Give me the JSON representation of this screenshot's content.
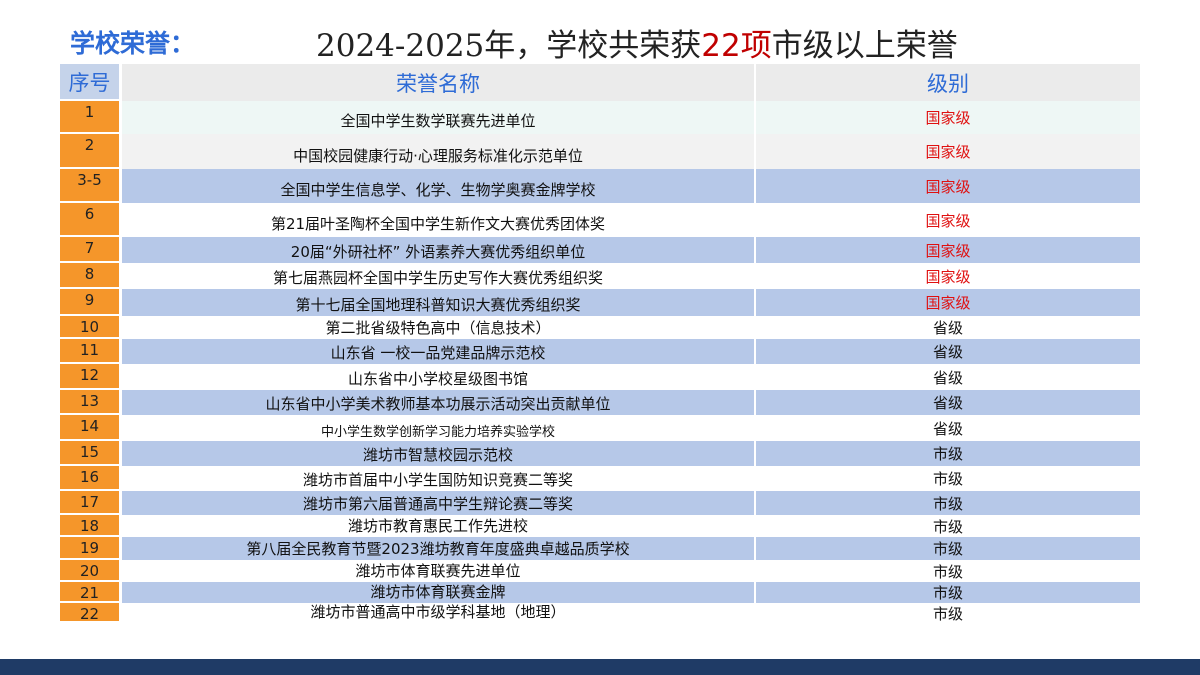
{
  "section_label": "学校荣誉：",
  "headline": {
    "prefix": "2024-2025年，学校共荣获",
    "count": "22",
    "unit": "项",
    "suffix": "市级以上荣誉"
  },
  "table": {
    "headers": {
      "index": "序号",
      "name": "荣誉名称",
      "level": "级别"
    },
    "rows": [
      {
        "index": "1",
        "name": "全国中学生数学联赛先进单位",
        "level": "国家级"
      },
      {
        "index": "2",
        "name": "中国校园健康行动·心理服务标准化示范单位",
        "level": "国家级"
      },
      {
        "index": "3-5",
        "name": "全国中学生信息学、化学、生物学奥赛金牌学校",
        "level": "国家级"
      },
      {
        "index": "6",
        "name": "第21届叶圣陶杯全国中学生新作文大赛优秀团体奖",
        "level": "国家级"
      },
      {
        "index": "7",
        "name": "20届“外研社杯” 外语素养大赛优秀组织单位",
        "level": "国家级"
      },
      {
        "index": "8",
        "name": "第七届燕园杯全国中学生历史写作大赛优秀组织奖",
        "level": "国家级"
      },
      {
        "index": "9",
        "name": "第十七届全国地理科普知识大赛优秀组织奖",
        "level": "国家级"
      },
      {
        "index": "10",
        "name": "第二批省级特色高中（信息技术）",
        "level": "省级"
      },
      {
        "index": "11",
        "name": "山东省 一校一品党建品牌示范校",
        "level": "省级"
      },
      {
        "index": "12",
        "name": "山东省中小学校星级图书馆",
        "level": "省级"
      },
      {
        "index": "13",
        "name": "山东省中小学美术教师基本功展示活动突出贡献单位",
        "level": "省级"
      },
      {
        "index": "14",
        "name": "中小学生数学创新学习能力培养实验学校",
        "level": "省级"
      },
      {
        "index": "15",
        "name": "潍坊市智慧校园示范校",
        "level": "市级"
      },
      {
        "index": "16",
        "name": "潍坊市首届中小学生国防知识竞赛二等奖",
        "level": "市级"
      },
      {
        "index": "17",
        "name": "潍坊市第六届普通高中学生辩论赛二等奖",
        "level": "市级"
      },
      {
        "index": "18",
        "name": "潍坊市教育惠民工作先进校",
        "level": "市级"
      },
      {
        "index": "19",
        "name": "第八届全民教育节暨2023潍坊教育年度盛典卓越品质学校",
        "level": "市级"
      },
      {
        "index": "20",
        "name": "潍坊市体育联赛先进单位",
        "level": "市级"
      },
      {
        "index": "21",
        "name": "潍坊市体育联赛金牌",
        "level": "市级"
      },
      {
        "index": "22",
        "name": "潍坊市普通高中市级学科基地（地理）",
        "level": "市级"
      }
    ]
  },
  "colors": {
    "accent_blue": "#2e6bd6",
    "national_red": "#e01010",
    "index_orange": "#f5962a",
    "row_blue": "#b6c8e8",
    "footer_navy": "#1f3b66"
  }
}
